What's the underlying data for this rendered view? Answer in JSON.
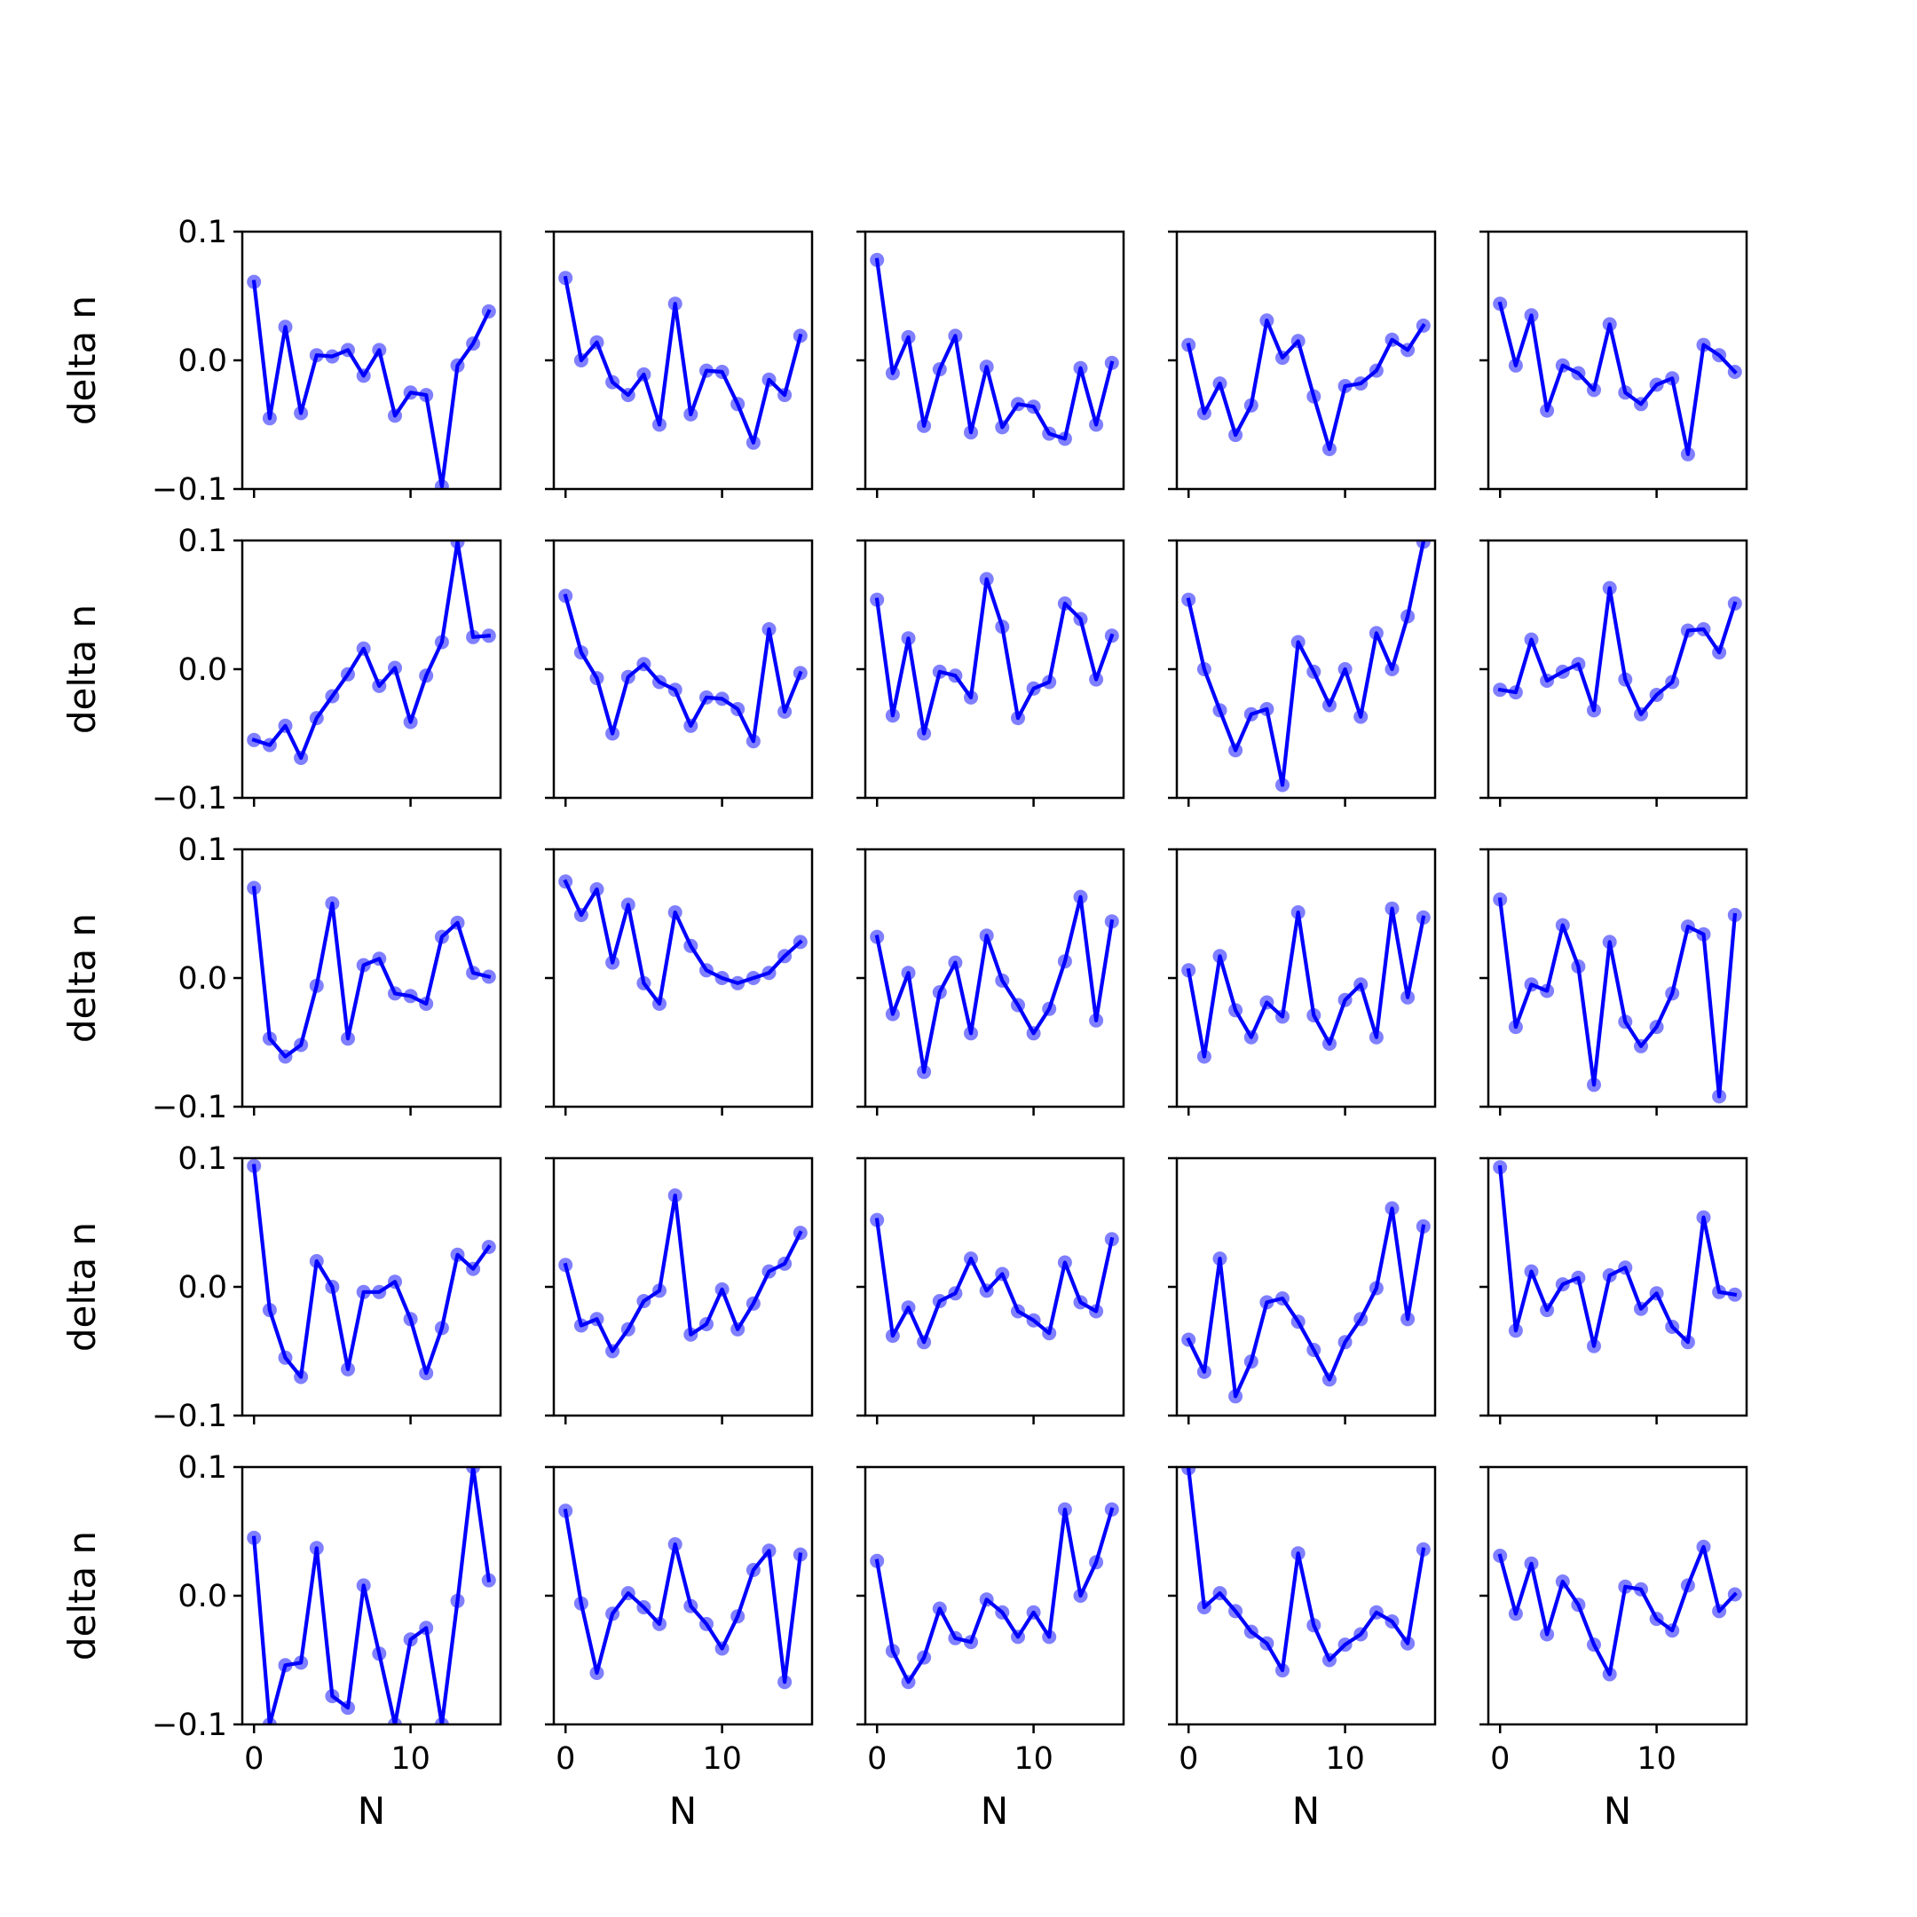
{
  "figure": {
    "rows": 5,
    "cols": 5
  },
  "chart_data": {
    "type": "line",
    "layout": "5x5 grid of small multiples",
    "xlabel": "N",
    "ylabel": "delta n",
    "xlim": [
      -0.75,
      15.75
    ],
    "ylim": [
      -0.1,
      0.1
    ],
    "xticks": [
      0,
      10
    ],
    "xtick_labels": [
      "0",
      "10"
    ],
    "yticks": [
      0.1,
      0.0,
      -0.1
    ],
    "ytick_labels": [
      "0.1",
      "0.0",
      "−0.1"
    ],
    "x": [
      0,
      1,
      2,
      3,
      4,
      5,
      6,
      7,
      8,
      9,
      10,
      11,
      12,
      13,
      14,
      15
    ],
    "line_color": "#0000ff",
    "marker_color": "#0000ff",
    "marker_alpha": 0.5,
    "grid": false,
    "panels": [
      {
        "values": [
          0.061,
          -0.045,
          0.026,
          -0.041,
          0.004,
          0.003,
          0.008,
          -0.012,
          0.008,
          -0.043,
          -0.025,
          -0.027,
          -0.098,
          -0.004,
          0.013,
          0.038
        ]
      },
      {
        "values": [
          0.064,
          0.0,
          0.014,
          -0.017,
          -0.027,
          -0.011,
          -0.05,
          0.044,
          -0.042,
          -0.008,
          -0.009,
          -0.034,
          -0.064,
          -0.015,
          -0.027,
          0.019
        ]
      },
      {
        "values": [
          0.078,
          -0.01,
          0.018,
          -0.051,
          -0.007,
          0.019,
          -0.056,
          -0.005,
          -0.052,
          -0.034,
          -0.036,
          -0.057,
          -0.061,
          -0.006,
          -0.05,
          -0.002
        ]
      },
      {
        "values": [
          0.012,
          -0.041,
          -0.018,
          -0.058,
          -0.035,
          0.031,
          0.002,
          0.015,
          -0.028,
          -0.069,
          -0.02,
          -0.018,
          -0.008,
          0.016,
          0.008,
          0.027
        ]
      },
      {
        "values": [
          0.044,
          -0.004,
          0.035,
          -0.039,
          -0.004,
          -0.01,
          -0.023,
          0.028,
          -0.025,
          -0.034,
          -0.019,
          -0.014,
          -0.073,
          0.012,
          0.004,
          -0.009
        ]
      },
      {
        "values": [
          -0.055,
          -0.059,
          -0.044,
          -0.069,
          -0.038,
          -0.021,
          -0.004,
          0.016,
          -0.013,
          0.001,
          -0.041,
          -0.005,
          0.021,
          0.099,
          0.025,
          0.026
        ]
      },
      {
        "values": [
          0.057,
          0.013,
          -0.007,
          -0.05,
          -0.006,
          0.004,
          -0.01,
          -0.016,
          -0.044,
          -0.022,
          -0.023,
          -0.031,
          -0.056,
          0.031,
          -0.033,
          -0.003
        ]
      },
      {
        "values": [
          0.054,
          -0.036,
          0.024,
          -0.05,
          -0.002,
          -0.005,
          -0.022,
          0.07,
          0.033,
          -0.038,
          -0.015,
          -0.01,
          0.051,
          0.039,
          -0.008,
          0.026
        ]
      },
      {
        "values": [
          0.054,
          0.0,
          -0.032,
          -0.063,
          -0.035,
          -0.031,
          -0.09,
          0.021,
          -0.002,
          -0.028,
          0.0,
          -0.037,
          0.028,
          0.0,
          0.041,
          0.099
        ]
      },
      {
        "values": [
          -0.016,
          -0.018,
          0.023,
          -0.009,
          -0.002,
          0.004,
          -0.032,
          0.063,
          -0.008,
          -0.035,
          -0.02,
          -0.01,
          0.03,
          0.031,
          0.013,
          0.051
        ]
      },
      {
        "values": [
          0.07,
          -0.047,
          -0.061,
          -0.052,
          -0.006,
          0.058,
          -0.047,
          0.01,
          0.015,
          -0.012,
          -0.014,
          -0.02,
          0.032,
          0.043,
          0.004,
          0.001
        ]
      },
      {
        "values": [
          0.075,
          0.049,
          0.069,
          0.012,
          0.057,
          -0.004,
          -0.02,
          0.051,
          0.025,
          0.006,
          0.0,
          -0.004,
          0.0,
          0.004,
          0.017,
          0.028
        ]
      },
      {
        "values": [
          0.032,
          -0.028,
          0.004,
          -0.073,
          -0.011,
          0.012,
          -0.043,
          0.033,
          -0.002,
          -0.021,
          -0.043,
          -0.024,
          0.013,
          0.063,
          -0.033,
          0.044
        ]
      },
      {
        "values": [
          0.006,
          -0.061,
          0.017,
          -0.025,
          -0.046,
          -0.019,
          -0.03,
          0.051,
          -0.029,
          -0.051,
          -0.017,
          -0.005,
          -0.046,
          0.054,
          -0.015,
          0.047
        ]
      },
      {
        "values": [
          0.061,
          -0.038,
          -0.005,
          -0.01,
          0.041,
          0.009,
          -0.083,
          0.028,
          -0.034,
          -0.053,
          -0.038,
          -0.012,
          0.04,
          0.034,
          -0.092,
          0.049
        ]
      },
      {
        "values": [
          0.094,
          -0.018,
          -0.055,
          -0.07,
          0.02,
          0.0,
          -0.064,
          -0.004,
          -0.004,
          0.004,
          -0.025,
          -0.067,
          -0.032,
          0.025,
          0.014,
          0.031
        ]
      },
      {
        "values": [
          0.017,
          -0.03,
          -0.025,
          -0.05,
          -0.033,
          -0.011,
          -0.003,
          0.071,
          -0.037,
          -0.029,
          -0.002,
          -0.033,
          -0.013,
          0.012,
          0.018,
          0.042
        ]
      },
      {
        "values": [
          0.052,
          -0.038,
          -0.016,
          -0.043,
          -0.011,
          -0.005,
          0.022,
          -0.003,
          0.01,
          -0.019,
          -0.026,
          -0.036,
          0.019,
          -0.012,
          -0.019,
          0.037
        ]
      },
      {
        "values": [
          -0.041,
          -0.066,
          0.022,
          -0.085,
          -0.058,
          -0.012,
          -0.009,
          -0.027,
          -0.049,
          -0.072,
          -0.043,
          -0.025,
          -0.001,
          0.061,
          -0.025,
          0.047
        ]
      },
      {
        "values": [
          0.093,
          -0.034,
          0.012,
          -0.018,
          0.002,
          0.007,
          -0.046,
          0.009,
          0.015,
          -0.017,
          -0.005,
          -0.031,
          -0.043,
          0.054,
          -0.004,
          -0.006
        ]
      },
      {
        "values": [
          0.045,
          -0.1,
          -0.054,
          -0.052,
          0.037,
          -0.078,
          -0.087,
          0.008,
          -0.045,
          -0.1,
          -0.034,
          -0.025,
          -0.1,
          -0.004,
          0.1,
          0.012
        ]
      },
      {
        "values": [
          0.066,
          -0.006,
          -0.06,
          -0.014,
          0.002,
          -0.009,
          -0.022,
          0.04,
          -0.008,
          -0.022,
          -0.041,
          -0.016,
          0.02,
          0.035,
          -0.067,
          0.032
        ]
      },
      {
        "values": [
          0.027,
          -0.043,
          -0.067,
          -0.048,
          -0.01,
          -0.033,
          -0.036,
          -0.003,
          -0.013,
          -0.032,
          -0.013,
          -0.032,
          0.067,
          0.0,
          0.026,
          0.067
        ]
      },
      {
        "values": [
          0.099,
          -0.009,
          0.002,
          -0.012,
          -0.028,
          -0.037,
          -0.058,
          0.033,
          -0.023,
          -0.05,
          -0.038,
          -0.03,
          -0.013,
          -0.02,
          -0.037,
          0.036
        ]
      },
      {
        "values": [
          0.031,
          -0.014,
          0.025,
          -0.03,
          0.011,
          -0.007,
          -0.038,
          -0.061,
          0.007,
          0.005,
          -0.018,
          -0.027,
          0.008,
          0.038,
          -0.012,
          0.001
        ]
      }
    ]
  }
}
